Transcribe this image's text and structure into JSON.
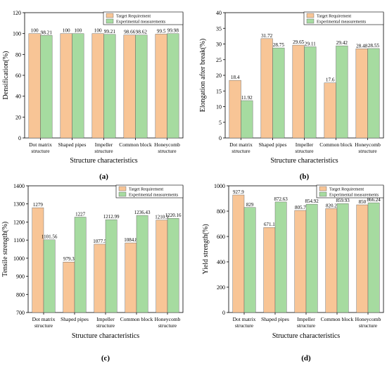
{
  "colors": {
    "target": "#F8C596",
    "experimental": "#A6DBA0",
    "edge": "#555555"
  },
  "legend_labels": [
    "Target Requirement",
    "Experimental measurements"
  ],
  "chart_data": [
    {
      "panel": "(a)",
      "type": "bar",
      "ylabel": "Densification(%)",
      "xlabel": "Structure characteristics",
      "ylim": [
        0,
        120
      ],
      "yticks": [
        0,
        20,
        40,
        60,
        80,
        100,
        120
      ],
      "categories": [
        [
          "Dot matrix",
          "structure"
        ],
        [
          "Shaped pipes"
        ],
        [
          "Impeller",
          "structure"
        ],
        [
          "Common block"
        ],
        [
          "Honeycomb",
          "structure"
        ]
      ],
      "series": [
        {
          "name": "Target Requirement",
          "values": [
            100,
            100,
            100,
            98.66,
            99.5
          ],
          "labels": [
            "100",
            "100",
            "100",
            "98.66",
            "99.5"
          ]
        },
        {
          "name": "Experimental measurements",
          "values": [
            98.21,
            100,
            99.21,
            98.62,
            99.98
          ],
          "labels": [
            "98.21",
            "100",
            "99.21",
            "98.62",
            "99.98"
          ]
        }
      ],
      "legend": "top-right"
    },
    {
      "panel": "(b)",
      "type": "bar",
      "ylabel": "Elongation after break(%)",
      "xlabel": "Structure characteristics",
      "ylim": [
        0,
        40
      ],
      "yticks": [
        0,
        5,
        10,
        15,
        20,
        25,
        30,
        35,
        40
      ],
      "categories": [
        [
          "Dot matrix",
          "structure"
        ],
        [
          "Shaped pipes"
        ],
        [
          "Impeller",
          "structure"
        ],
        [
          "Common block"
        ],
        [
          "Honeycomb",
          "structure"
        ]
      ],
      "series": [
        {
          "name": "Target Requirement",
          "values": [
            18.4,
            31.72,
            29.65,
            17.6,
            28.48
          ],
          "labels": [
            "18.4",
            "31.72",
            "29.65",
            "17.6",
            "28.48"
          ]
        },
        {
          "name": "Experimental measurements",
          "values": [
            11.92,
            28.75,
            29.11,
            29.42,
            28.55
          ],
          "labels": [
            "11.92",
            "28.75",
            "29.11",
            "29.42",
            "28.55"
          ]
        }
      ],
      "legend": "top-right"
    },
    {
      "panel": "(c)",
      "type": "bar",
      "ylabel": "Tensile strength(%)",
      "xlabel": "Structure characteristics",
      "ylim": [
        700,
        1400
      ],
      "yticks": [
        700,
        800,
        900,
        1000,
        1100,
        1200,
        1300,
        1400
      ],
      "categories": [
        [
          "Dot matrix",
          "structure"
        ],
        [
          "Shaped pipes"
        ],
        [
          "Impeller",
          "structure"
        ],
        [
          "Common block"
        ],
        [
          "Honeycomb",
          "structure"
        ]
      ],
      "series": [
        {
          "name": "Target Requirement",
          "values": [
            1279,
            979.3,
            1077.5,
            1084.8,
            1210.9
          ],
          "labels": [
            "1279",
            "979.3",
            "1077.5",
            "1084.8",
            "1210.9"
          ]
        },
        {
          "name": "Experimental measurements",
          "values": [
            1101.56,
            1227,
            1212.99,
            1236.43,
            1220.16
          ],
          "labels": [
            "1101.56",
            "1227",
            "1212.99",
            "1236.43",
            "1220.16"
          ]
        }
      ],
      "legend": "top-right"
    },
    {
      "panel": "(d)",
      "type": "bar",
      "ylabel": "Yield strength(%)",
      "xlabel": "Structure characteristics",
      "ylim": [
        0,
        1000
      ],
      "yticks": [
        0,
        200,
        400,
        600,
        800,
        1000
      ],
      "categories": [
        [
          "Dot matrix",
          "structure"
        ],
        [
          "Shaped pipes"
        ],
        [
          "Impeller",
          "structure"
        ],
        [
          "Common block"
        ],
        [
          "Honeycomb",
          "structure"
        ]
      ],
      "series": [
        {
          "name": "Target Requirement",
          "values": [
            927.9,
            671.1,
            805.7,
            820.2,
            850
          ],
          "labels": [
            "927.9",
            "671.1",
            "805.7",
            "820.2",
            "850"
          ]
        },
        {
          "name": "Experimental measurements",
          "values": [
            829,
            872.63,
            854.92,
            859.93,
            866.24
          ],
          "labels": [
            "829",
            "872.63",
            "854.92",
            "859.93",
            "866.24"
          ]
        }
      ],
      "legend": "top-right"
    }
  ]
}
